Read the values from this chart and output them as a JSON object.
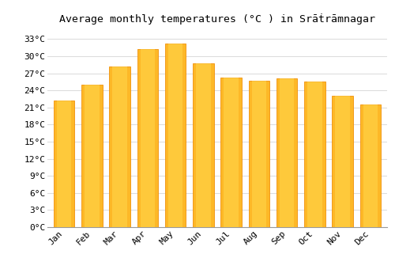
{
  "months": [
    "Jan",
    "Feb",
    "Mar",
    "Apr",
    "May",
    "Jun",
    "Jul",
    "Aug",
    "Sep",
    "Oct",
    "Nov",
    "Dec"
  ],
  "temperatures": [
    22.2,
    25.0,
    28.2,
    31.2,
    32.2,
    28.8,
    26.3,
    25.7,
    26.1,
    25.5,
    23.0,
    21.5
  ],
  "bar_color_face": "#FDB827",
  "bar_color_edge": "#F0900A",
  "title": "Average monthly temperatures (°C ) in Srāṫrāmnagar",
  "ytick_values": [
    0,
    3,
    6,
    9,
    12,
    15,
    18,
    21,
    24,
    27,
    30,
    33
  ],
  "ytick_labels": [
    "0°C",
    "3°C",
    "6°C",
    "9°C",
    "12°C",
    "15°C",
    "18°C",
    "21°C",
    "24°C",
    "27°C",
    "30°C",
    "33°C"
  ],
  "ylim": [
    0,
    35.0
  ],
  "background_color": "#FFFFFF",
  "grid_color": "#DDDDDD",
  "title_fontsize": 9.5,
  "tick_fontsize": 8,
  "font_family": "monospace",
  "bar_width": 0.75
}
